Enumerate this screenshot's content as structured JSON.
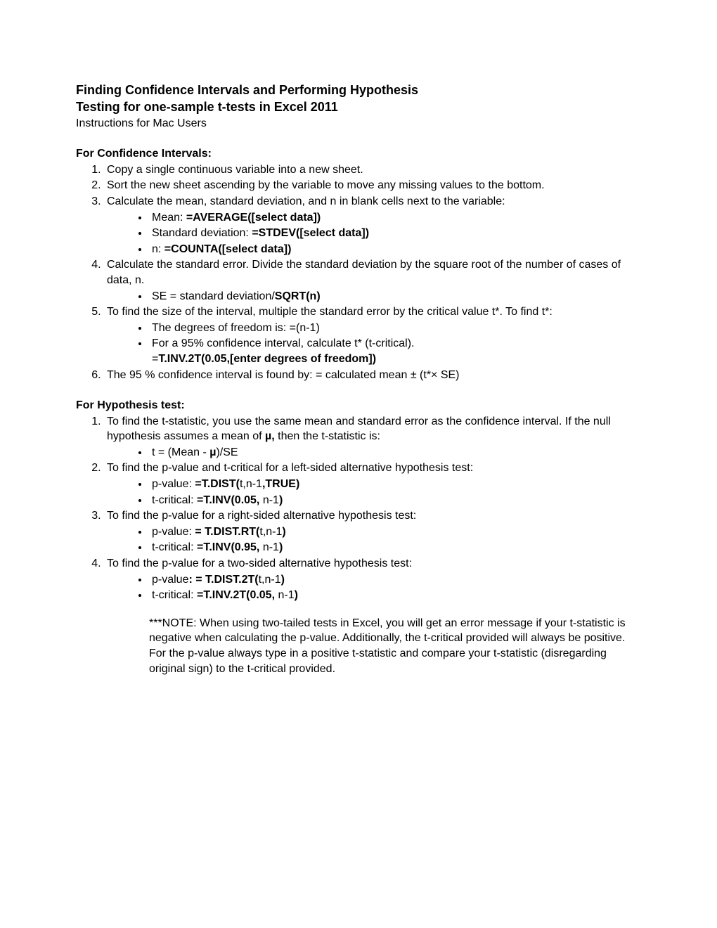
{
  "title": {
    "line1": "Finding Confidence Intervals and Performing Hypothesis",
    "line2": "Testing for one-sample t-tests in Excel 2011",
    "subtitle": "Instructions for Mac Users"
  },
  "ci": {
    "heading": "For Confidence Intervals:",
    "item1": "Copy a single continuous variable into a new sheet.",
    "item2": "Sort the new sheet ascending by the variable to move any missing values to the bottom.",
    "item3": "Calculate the mean, standard deviation, and n in blank cells next to the variable:",
    "item3b1_pre": "Mean: ",
    "item3b1_bold": "=AVERAGE([select data])",
    "item3b2_pre": "Standard deviation: ",
    "item3b2_bold": "=STDEV([select data])",
    "item3b3_pre": "n: ",
    "item3b3_bold": "=COUNTA([select data])",
    "item4": "Calculate the standard error. Divide the standard deviation by the square root of the number of cases of data, n.",
    "item4b1_pre": "SE = standard deviation/",
    "item4b1_bold": "SQRT(n)",
    "item5": "To find the size of the interval, multiple the standard error by the critical value t*. To find t*:",
    "item5b1": "The degrees of freedom is: =(n-1)",
    "item5b2_l1": "For a 95% confidence interval, calculate t* (t-critical).",
    "item5b2_l2_pre": "=",
    "item5b2_l2_bold": "T.INV.2T(0.05,[enter degrees of freedom])",
    "item6": "The 95 % confidence interval is found by: = calculated mean ± (t*× SE)"
  },
  "ht": {
    "heading": "For Hypothesis test:",
    "item1_a": "To find the t-statistic, you use the same mean and standard error as the confidence interval. If the null hypothesis assumes a mean of ",
    "item1_mu": "µ,",
    "item1_b": " then the t-statistic is:",
    "item1b1_pre": "t = (Mean - ",
    "item1b1_mu": "µ",
    "item1b1_post": ")/SE",
    "item2": "To find the p-value and t-critical for a left-sided alternative hypothesis test:",
    "item2b1_pre": "p-value: ",
    "item2b1_b1": "=T.DIST(",
    "item2b1_mid": "t,n-1",
    "item2b1_b2": ",TRUE)",
    "item2b2_pre": "t-critical: ",
    "item2b2_b1": "=T.INV(0.05,",
    "item2b2_mid": " n-1",
    "item2b2_b2": ")",
    "item3": "To find the p-value for a right-sided alternative hypothesis test:",
    "item3b1_pre": "p-value: ",
    "item3b1_b1": "= T.DIST.RT(",
    "item3b1_mid": "t,n-1",
    "item3b1_b2": ")",
    "item3b2_pre": "t-critical: ",
    "item3b2_b1": "=T.INV(0.95,",
    "item3b2_mid": " n-1",
    "item3b2_b2": ")",
    "item4": "To find the p-value for a two-sided alternative hypothesis test:",
    "item4b1_pre": "p-value",
    "item4b1_b1": ": = T.DIST.2T(",
    "item4b1_mid": "t,n-1",
    "item4b1_b2": ")",
    "item4b2_pre": "t-critical: ",
    "item4b2_b1": "=T.INV.2T(0.05,",
    "item4b2_mid": " n-1",
    "item4b2_b2": ")",
    "note": "***NOTE: When using two-tailed tests in Excel, you will get an error message if your t-statistic is negative when calculating the p-value. Additionally, the t-critical provided will always be positive. For the p-value always type in a positive t-statistic and compare your t-statistic (disregarding original sign) to the t-critical provided."
  }
}
